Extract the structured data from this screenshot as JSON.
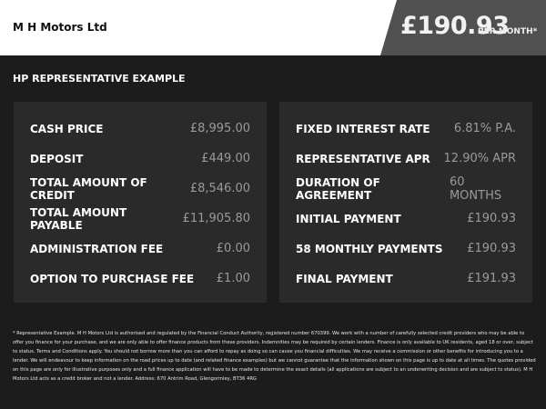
{
  "header": {
    "dealer": "M H Motors Ltd",
    "price": "£190.93",
    "per_month": "PER MONTH*"
  },
  "section_title": "HP REPRESENTATIVE EXAMPLE",
  "left": [
    {
      "label": "CASH PRICE",
      "value": "£8,995.00"
    },
    {
      "label": "DEPOSIT",
      "value": "£449.00"
    },
    {
      "label": "TOTAL AMOUNT OF CREDIT",
      "value": "£8,546.00"
    },
    {
      "label": "TOTAL AMOUNT PAYABLE",
      "value": "£11,905.80"
    },
    {
      "label": "ADMINISTRATION FEE",
      "value": "£0.00"
    },
    {
      "label": "OPTION TO PURCHASE FEE",
      "value": "£1.00"
    }
  ],
  "right": [
    {
      "label": "FIXED INTEREST RATE",
      "value": "6.81% P.A."
    },
    {
      "label": "REPRESENTATIVE APR",
      "value": "12.90% APR"
    },
    {
      "label": "DURATION OF AGREEMENT",
      "value": "60 MONTHS"
    },
    {
      "label": "INITIAL PAYMENT",
      "value": "£190.93"
    },
    {
      "label": "58 MONTHLY PAYMENTS",
      "value": "£190.93"
    },
    {
      "label": "FINAL PAYMENT",
      "value": "£191.93"
    }
  ],
  "disclaimer": "* Representative Example. M H Motors Ltd is authorised and regulated by the Financial Conduct Authority, registered number 670399. We work with a number of carefully selected credit providers who may be able to offer you finance for your purchase, and we are only able to offer finance products from these providers. Indemnities may be required by certain lenders. Finance is only available to UK residents, aged 18 or over, subject to status. Terms and Conditions apply. You should not borrow more than you can afford to repay as doing so can cause you financial difficulties. We may receive a commission or other benefits for introducing you to a lender. We will endeavour to keep information on the road prices up to date (and related finance examples) but we cannot guarantee that the information shown on this page is up to date at all times. The quotes provided on this page are only for illustrative purposes only and a full finance application will have to be made to determine the exact details (all applications are subject to an underwriting decision and are subject to status). M H Motors Ltd acts as a credit broker and not a lender. Address: 670 Antrim Road, Glengormley, BT36 4RG"
}
